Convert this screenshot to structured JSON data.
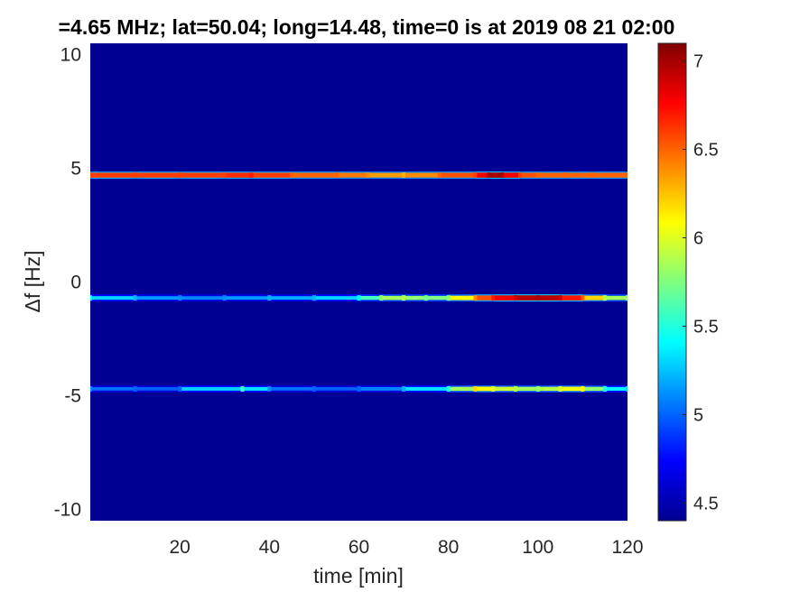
{
  "chart_data": {
    "type": "heatmap",
    "title": "=4.65 MHz;  lat=50.04; long=14.48, time=0 is at 2019 08 21 02:00",
    "xlabel": "time [min]",
    "ylabel": "Δf [Hz]",
    "xlim": [
      0,
      120
    ],
    "ylim": [
      -10.5,
      10.5
    ],
    "x_ticks": [
      20,
      40,
      60,
      80,
      100,
      120
    ],
    "x_tick_labels": [
      "20",
      "40",
      "60",
      "80",
      "100",
      "120"
    ],
    "y_ticks": [
      10,
      5,
      0,
      -5,
      -10
    ],
    "y_tick_labels": [
      "10",
      "5",
      "0",
      "-5",
      "-10"
    ],
    "colormap": "jet",
    "colorbar": {
      "range": [
        4.4,
        7.1
      ],
      "ticks": [
        7,
        6.5,
        6,
        5.5,
        5,
        4.5
      ],
      "tick_labels": [
        "7",
        "6.5",
        "6",
        "5.5",
        "5",
        "4.5"
      ]
    },
    "background_value": 4.45,
    "series": [
      {
        "name": "",
        "freq_hz": 4.7,
        "x": [
          0,
          10,
          20,
          30,
          36,
          45,
          55,
          62,
          70,
          78,
          86,
          89,
          92,
          96,
          100,
          106,
          112,
          120
        ],
        "values": [
          6.6,
          6.6,
          6.6,
          6.6,
          6.7,
          6.5,
          6.5,
          6.4,
          6.3,
          6.5,
          6.6,
          7.0,
          7.0,
          6.6,
          6.5,
          6.5,
          6.5,
          6.5
        ]
      },
      {
        "name": "",
        "freq_hz": -0.7,
        "x": [
          0,
          10,
          20,
          30,
          40,
          50,
          60,
          65,
          70,
          75,
          80,
          86,
          90,
          95,
          100,
          105,
          110,
          115,
          120
        ],
        "values": [
          5.4,
          5.2,
          5.1,
          5.1,
          5.2,
          5.2,
          5.4,
          5.8,
          5.9,
          5.7,
          5.8,
          6.4,
          6.7,
          6.9,
          7.0,
          6.9,
          6.5,
          5.9,
          5.8
        ]
      },
      {
        "name": "",
        "freq_hz": -4.7,
        "x": [
          0,
          10,
          20,
          34,
          40,
          50,
          60,
          70,
          80,
          86,
          90,
          95,
          100,
          105,
          110,
          115,
          120
        ],
        "values": [
          5.1,
          5.0,
          5.0,
          5.6,
          5.1,
          5.0,
          5.0,
          5.2,
          5.5,
          6.2,
          6.0,
          5.9,
          5.8,
          6.0,
          6.1,
          5.5,
          5.3
        ]
      }
    ]
  }
}
